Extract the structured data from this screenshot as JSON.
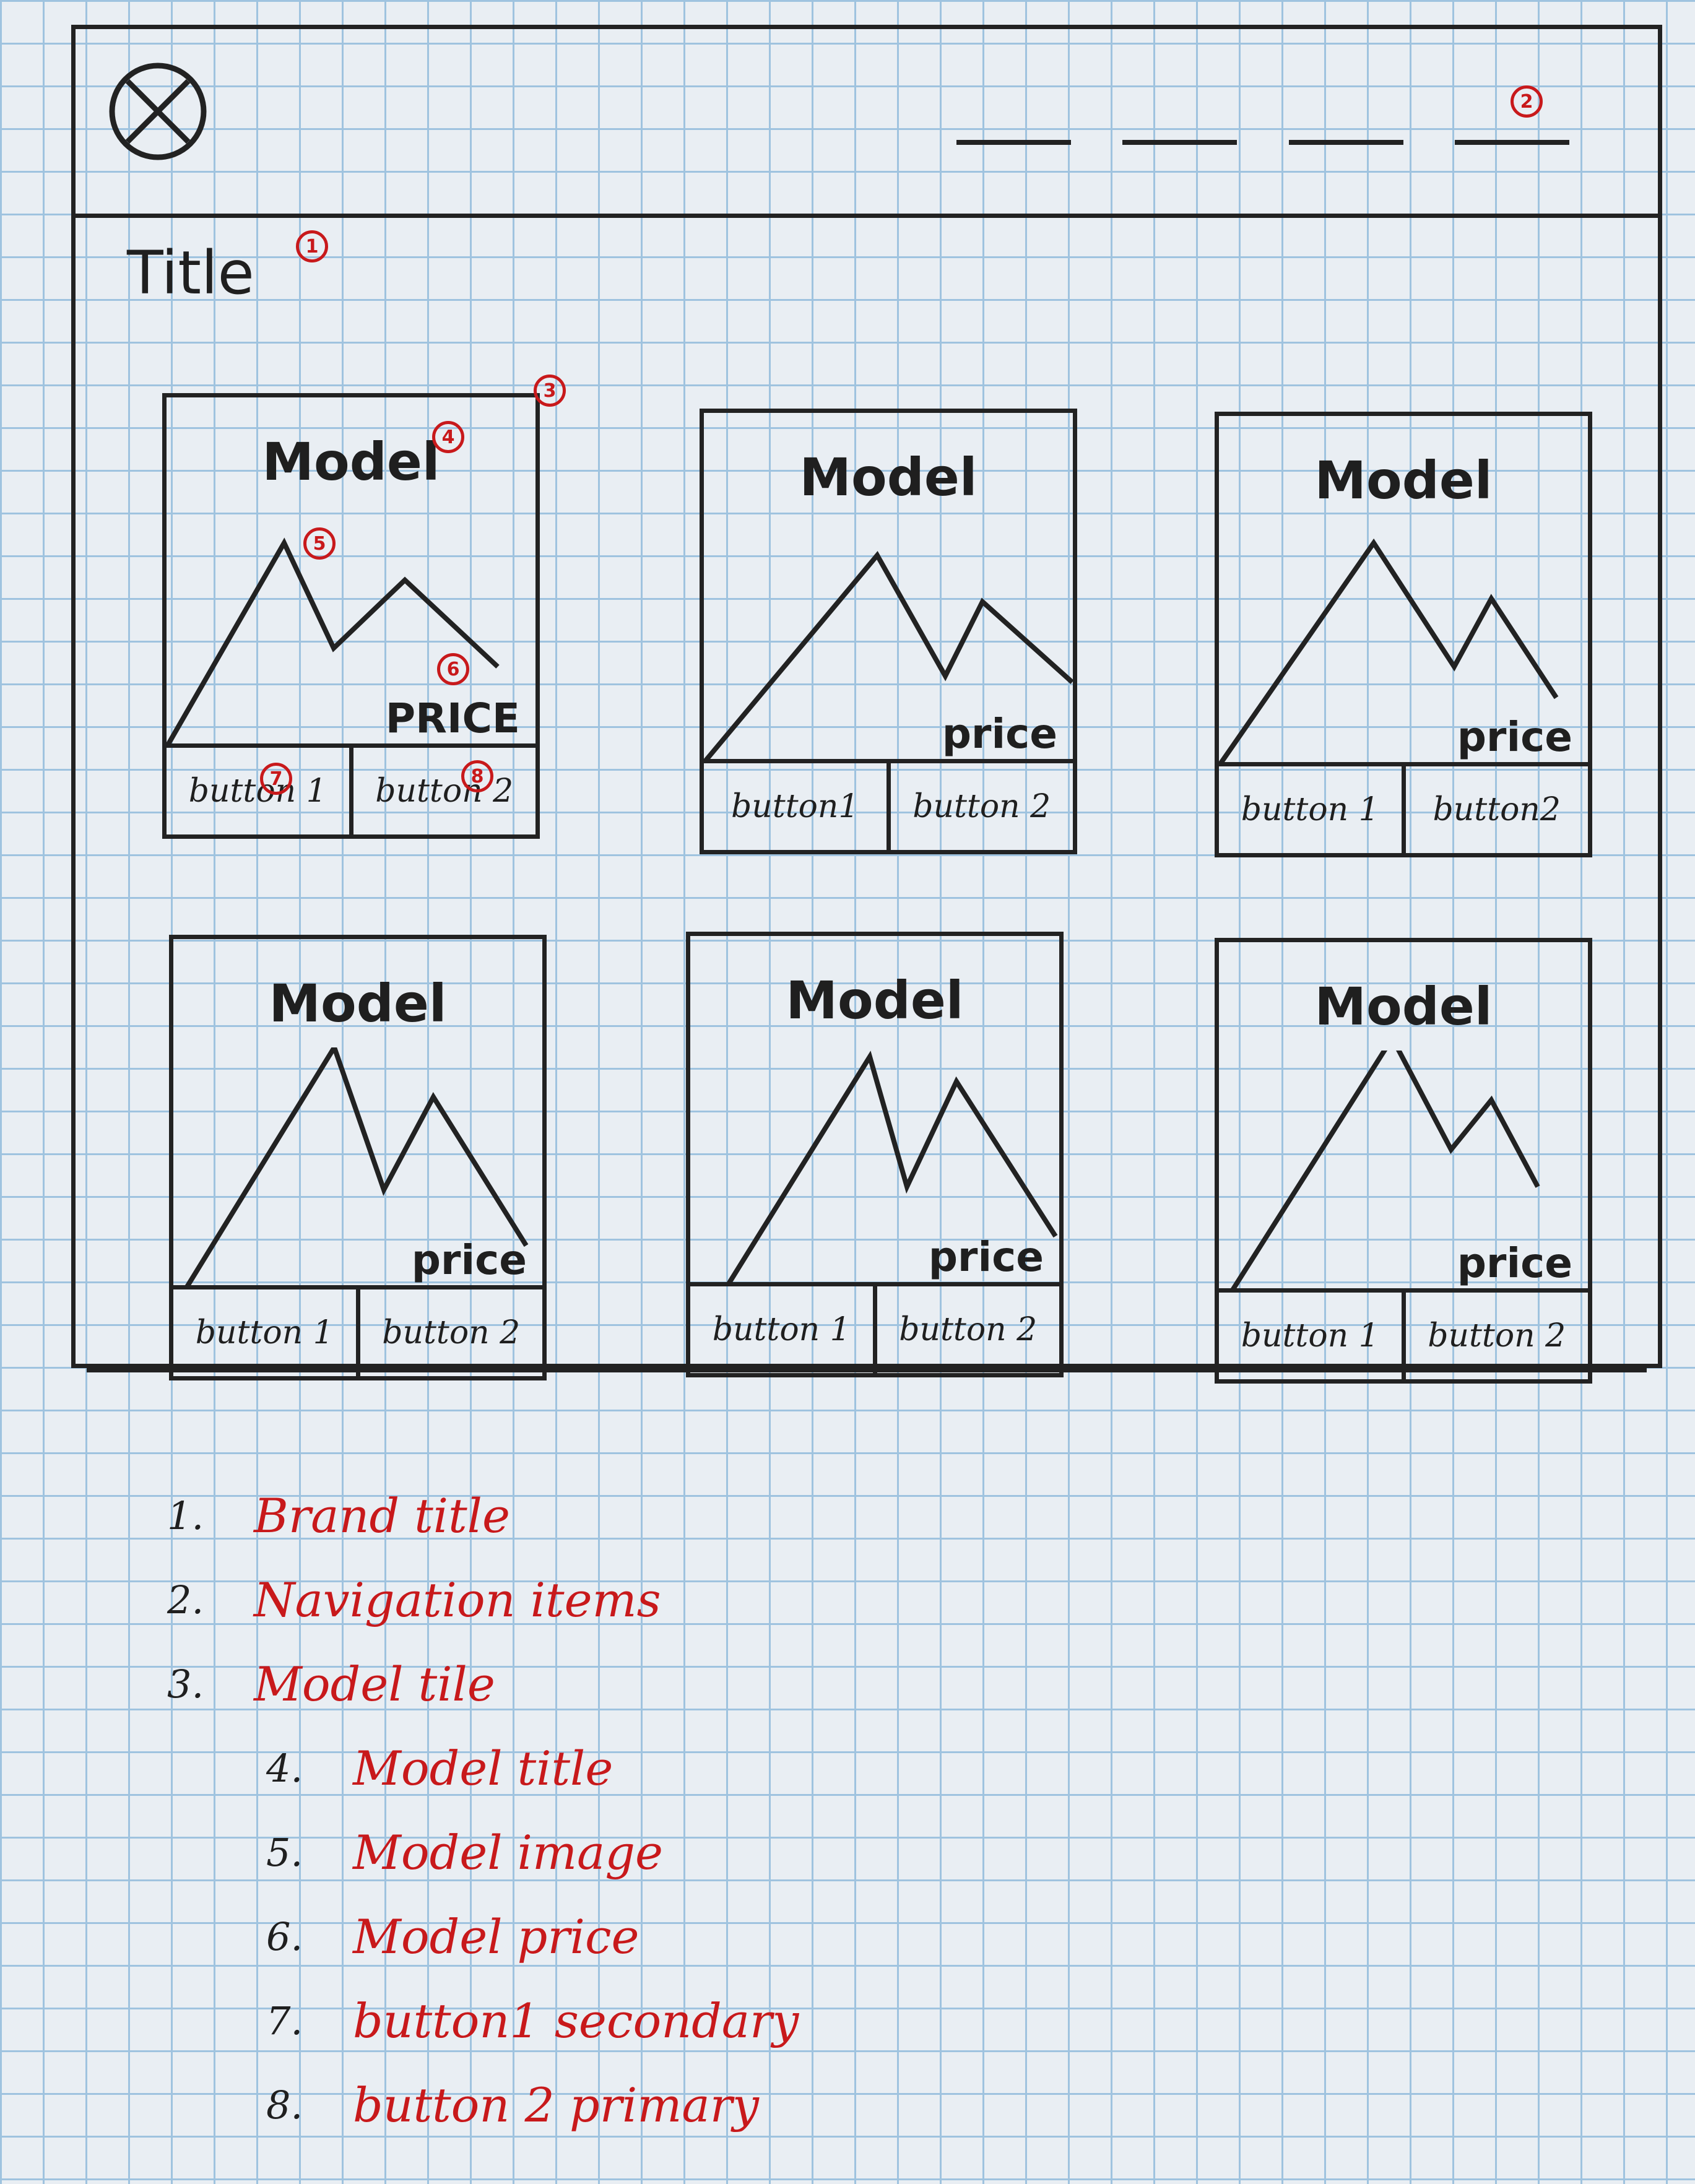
{
  "header": {
    "logo_icon": "circle-x-icon",
    "badges": {
      "brand": "1",
      "nav": "2"
    },
    "nav_items": [
      "",
      "",
      "",
      ""
    ]
  },
  "page": {
    "title": "Title"
  },
  "tile_badges": {
    "tile": "3",
    "model_title": "4",
    "model_image": "5",
    "model_price": "6",
    "button1": "7",
    "button2": "8"
  },
  "tiles": [
    {
      "title": "Model",
      "price": "PRICE",
      "button1": "button 1",
      "button2": "button 2"
    },
    {
      "title": "Model",
      "price": "price",
      "button1": "button1",
      "button2": "button 2"
    },
    {
      "title": "Model",
      "price": "price",
      "button1": "button 1",
      "button2": "button2"
    },
    {
      "title": "Model",
      "price": "price",
      "button1": "button 1",
      "button2": "button 2"
    },
    {
      "title": "Model",
      "price": "price",
      "button1": "button 1",
      "button2": "button 2"
    },
    {
      "title": "Model",
      "price": "price",
      "button1": "button 1",
      "button2": "button 2"
    }
  ],
  "legend": [
    {
      "num": "1.",
      "label": "Brand title"
    },
    {
      "num": "2.",
      "label": "Navigation items"
    },
    {
      "num": "3.",
      "label": "Model tile"
    },
    {
      "num": "4.",
      "label": "Model title"
    },
    {
      "num": "5.",
      "label": "Model image"
    },
    {
      "num": "6.",
      "label": "Model price"
    },
    {
      "num": "7.",
      "label": "button1 secondary"
    },
    {
      "num": "8.",
      "label": "button 2 primary"
    }
  ],
  "colors": {
    "ink": "#1f1f1f",
    "annotation_red": "#c8191b",
    "grid": "#9fc3df",
    "paper": "#e9eef3"
  }
}
